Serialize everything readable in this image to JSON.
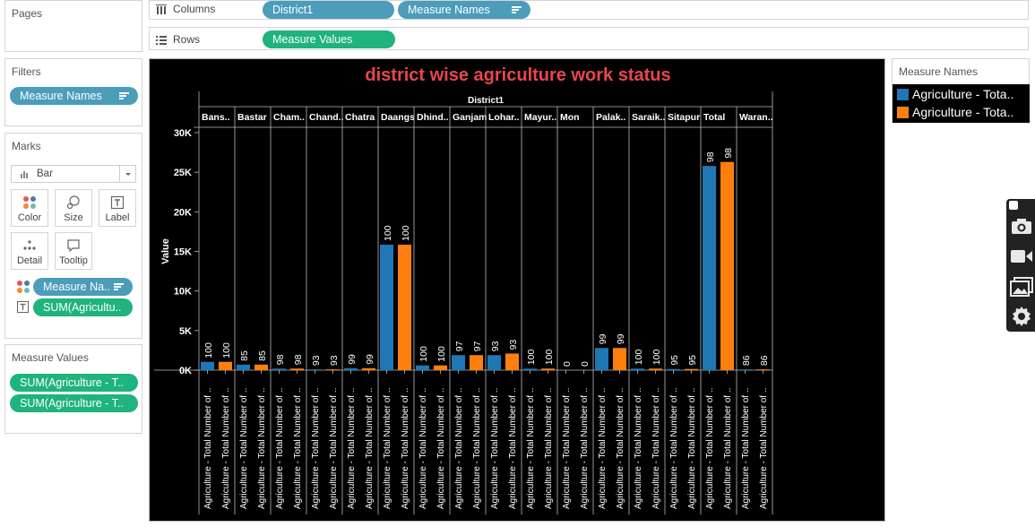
{
  "pages": {
    "title": "Pages"
  },
  "columns": {
    "label": "Columns",
    "pills": [
      "District1",
      "Measure Names"
    ]
  },
  "rows": {
    "label": "Rows",
    "pills": [
      "Measure Values"
    ]
  },
  "filters": {
    "title": "Filters",
    "pills": [
      "Measure Names"
    ]
  },
  "marks": {
    "title": "Marks",
    "mark_type": "Bar",
    "buttons": {
      "color": "Color",
      "size": "Size",
      "label": "Label",
      "detail": "Detail",
      "tooltip": "Tooltip"
    },
    "pills": [
      "Measure Na..",
      "SUM(Agricultu.."
    ]
  },
  "measure_values": {
    "title": "Measure Values",
    "pills": [
      "SUM(Agriculture - T..",
      "SUM(Agriculture - T.."
    ]
  },
  "legend": {
    "title": "Measure Names",
    "items": [
      {
        "label": "Agriculture - Tota..",
        "color": "#1f77b4"
      },
      {
        "label": "Agriculture - Tota..",
        "color": "#ff7f0e"
      }
    ]
  },
  "chart_data": {
    "type": "bar",
    "title": "district wise agriculture work status",
    "column_header": "District1",
    "ylabel": "Value",
    "ylim": [
      0,
      30000
    ],
    "yticks": [
      "0K",
      "5K",
      "10K",
      "15K",
      "20K",
      "25K",
      "30K"
    ],
    "xtick_label": "Agriculture - Total Number of ..",
    "categories": [
      "Bans..",
      "Bastar",
      "Cham..",
      "Chand..",
      "Chatra",
      "Daangs",
      "Dhind..",
      "Ganjam",
      "Lohar..",
      "Mayur..",
      "Mon",
      "Palak..",
      "Saraik..",
      "Sitapur",
      "Total",
      "Waran.."
    ],
    "series": [
      {
        "color": "#1f77b4",
        "values": [
          1050,
          700,
          200,
          100,
          250,
          15850,
          600,
          1900,
          1900,
          200,
          0,
          2800,
          200,
          150,
          25800,
          100
        ],
        "labels": [
          "100",
          "85",
          "98",
          "93",
          "99",
          "100",
          "100",
          "97",
          "93",
          "100",
          "0",
          "99",
          "100",
          "95",
          "98",
          "86"
        ]
      },
      {
        "color": "#ff7f0e",
        "values": [
          1050,
          700,
          200,
          100,
          250,
          15850,
          600,
          1900,
          2100,
          200,
          0,
          2800,
          200,
          150,
          26300,
          100
        ],
        "labels": [
          "100",
          "85",
          "98",
          "93",
          "99",
          "100",
          "100",
          "97",
          "93",
          "100",
          "0",
          "99",
          "100",
          "95",
          "98",
          "86"
        ]
      }
    ],
    "title_color": "#e8474c",
    "background": "#000000"
  }
}
